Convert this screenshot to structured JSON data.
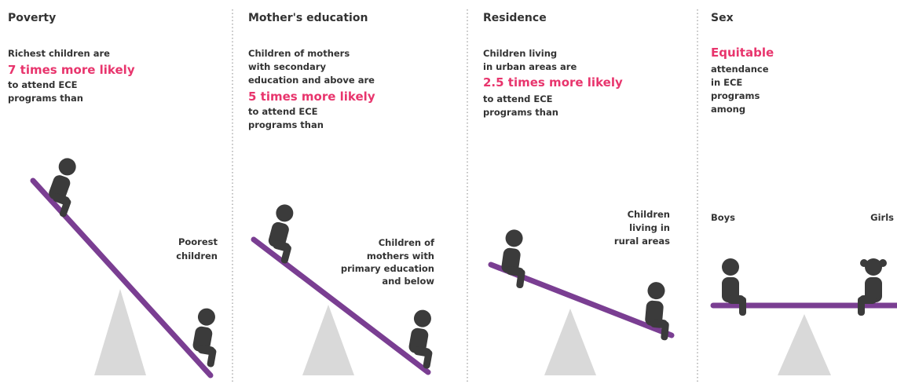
{
  "panels": [
    {
      "title": "Poverty",
      "text": [
        "Richest children are",
        "7 times more likely",
        "to attend ECE",
        "programs than"
      ],
      "label": [
        "Poorest",
        "children"
      ]
    },
    {
      "title": "Mother's education",
      "text": [
        "Children of mothers",
        "with secondary",
        "education and above are",
        "5 times more likely",
        "to attend ECE",
        "programs than"
      ],
      "label": [
        "Children of",
        "mothers with",
        "primary education",
        "and below"
      ]
    },
    {
      "title": "Residence",
      "text": [
        "Children living",
        "in urban areas are",
        "2.5 times more likely",
        "to attend ECE",
        "programs than"
      ],
      "label": [
        "Children",
        "living in",
        "rural areas"
      ]
    },
    {
      "title": "Sex",
      "text": [
        "Equitable",
        "attendance",
        "in ECE",
        "programs",
        "among"
      ],
      "label_left": [
        "Boys"
      ],
      "label_right": [
        "Girls"
      ]
    }
  ]
}
